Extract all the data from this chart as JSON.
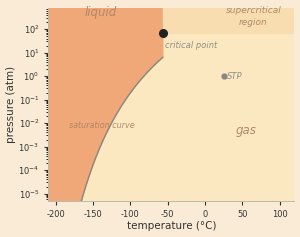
{
  "xlabel": "temperature (°C)",
  "ylabel": "pressure (atm)",
  "xlim": [
    -210,
    120
  ],
  "ylim_log_min": -5.3,
  "ylim_log_max": 2.9,
  "xticks": [
    -200,
    -150,
    -100,
    -50,
    0,
    50,
    100
  ],
  "critical_T": -56.6,
  "critical_P": 72.0,
  "STP_T": 25.0,
  "STP_P": 1.0,
  "sat_curve_A": 6.81228,
  "sat_curve_B": -1301.679,
  "bg_color": "#faebd7",
  "liquid_color": "#f0a878",
  "gas_color": "#fce8c0",
  "supercritical_color": "#f8ddb0",
  "curve_color": "#888880",
  "label_color_dark": "#b08868",
  "annotation_color": "#909088",
  "cp_dot_color": "#222222",
  "stp_dot_color": "#888888"
}
